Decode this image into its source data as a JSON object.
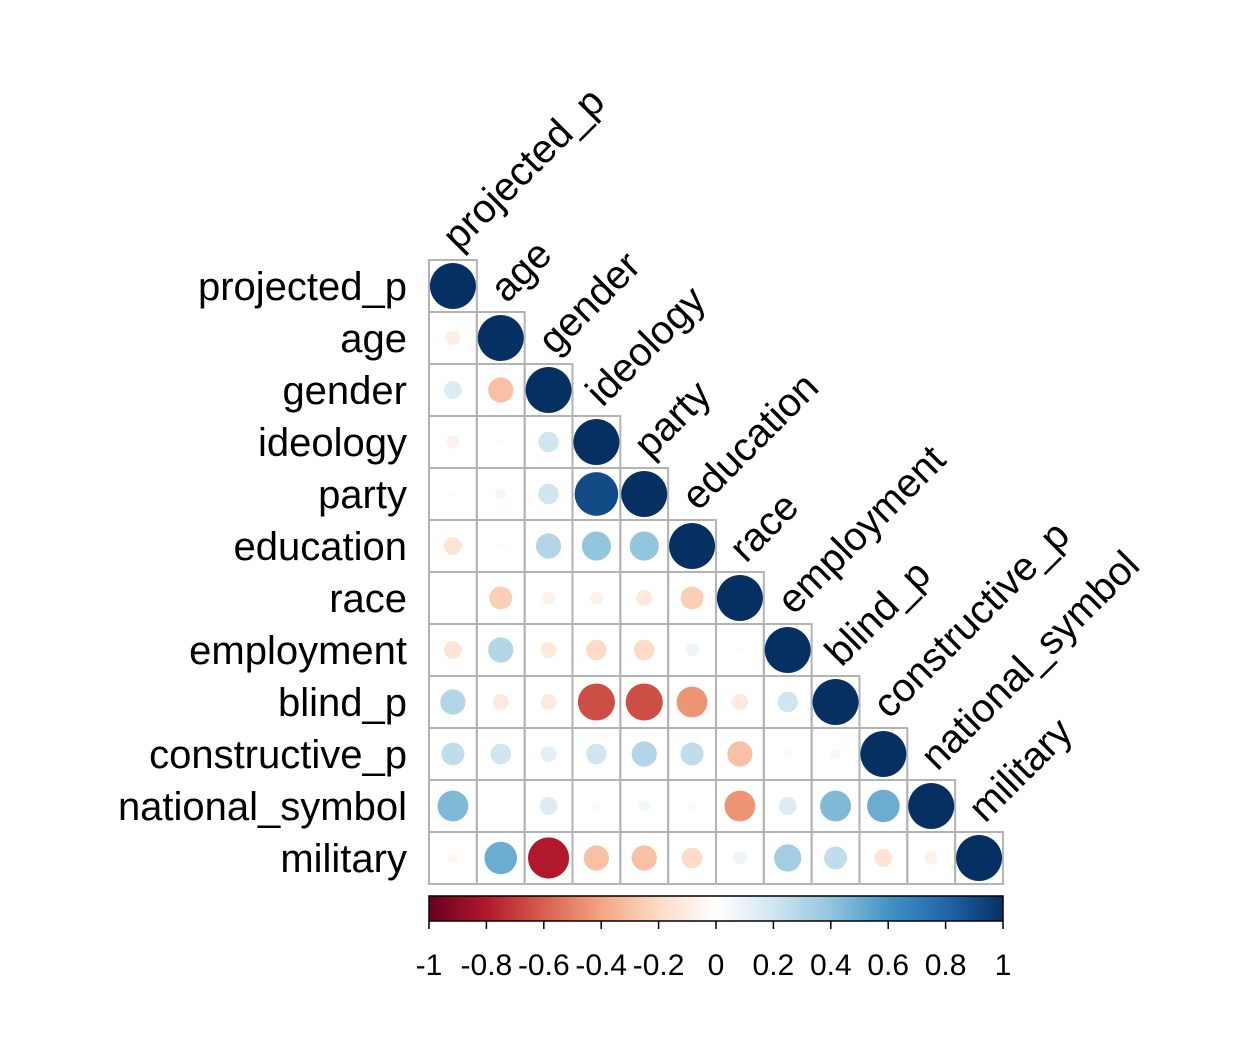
{
  "chart_data": {
    "type": "heatmap",
    "variables": [
      "projected_p",
      "age",
      "gender",
      "ideology",
      "party",
      "education",
      "race",
      "employment",
      "blind_p",
      "constructive_p",
      "national_symbol",
      "military"
    ],
    "matrix": [
      [
        1
      ],
      [
        -0.1,
        1
      ],
      [
        0.15,
        -0.3,
        1
      ],
      [
        -0.08,
        -0.03,
        0.2,
        1
      ],
      [
        0.02,
        0.06,
        0.2,
        0.9,
        1
      ],
      [
        -0.15,
        -0.03,
        0.3,
        0.4,
        0.4,
        1
      ],
      [
        0.0,
        -0.25,
        -0.08,
        -0.08,
        -0.12,
        -0.25,
        1
      ],
      [
        -0.15,
        0.3,
        -0.12,
        -0.2,
        -0.2,
        0.08,
        -0.02,
        1
      ],
      [
        0.3,
        -0.12,
        -0.12,
        -0.65,
        -0.65,
        -0.45,
        -0.12,
        0.2,
        1
      ],
      [
        0.25,
        0.2,
        0.12,
        0.2,
        0.3,
        0.25,
        -0.3,
        0.03,
        -0.05,
        1
      ],
      [
        0.45,
        0.0,
        0.15,
        0.03,
        0.06,
        0.03,
        -0.45,
        0.15,
        0.45,
        0.5,
        1
      ],
      [
        -0.05,
        0.5,
        -0.8,
        -0.3,
        -0.3,
        -0.2,
        0.08,
        0.35,
        0.25,
        -0.15,
        -0.08,
        1
      ]
    ],
    "colorbar": {
      "min": -1,
      "max": 1,
      "ticks": [
        "-1",
        "-0.8",
        "-0.6",
        "-0.4",
        "-0.2",
        "0",
        "0.2",
        "0.4",
        "0.6",
        "0.8",
        "1"
      ],
      "colors": [
        "#67001f",
        "#b2182b",
        "#d6604d",
        "#f4a582",
        "#fddbc7",
        "#ffffff",
        "#d1e5f0",
        "#92c5de",
        "#4393c3",
        "#2166ac",
        "#053061"
      ]
    },
    "shape": "lower-triangle",
    "method": "circle"
  }
}
